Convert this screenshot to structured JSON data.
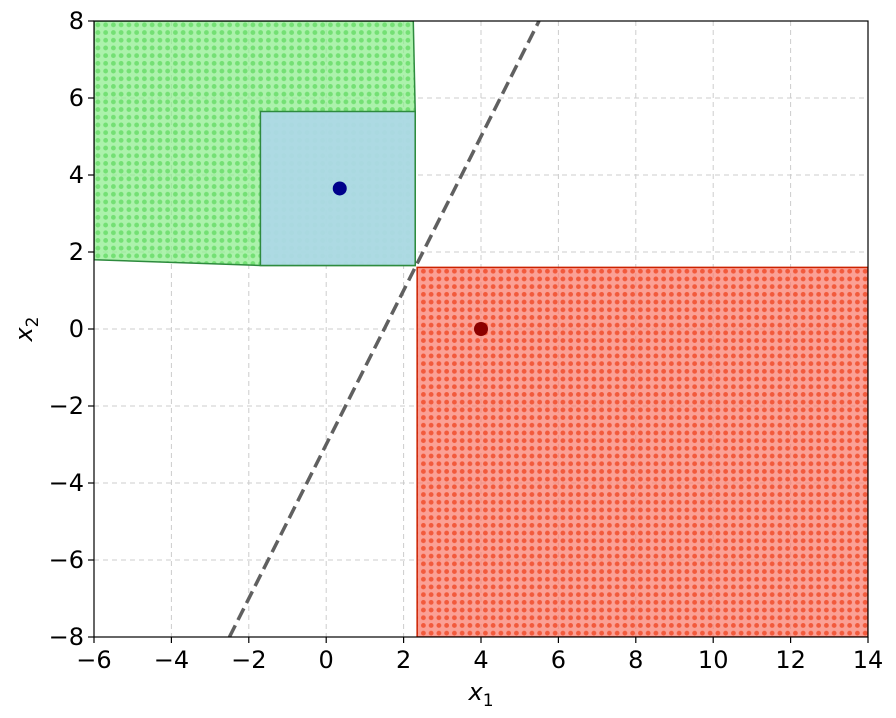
{
  "chart_data": {
    "type": "scatter",
    "title": "",
    "xlabel": "x",
    "xlabel_sub": "1",
    "ylabel": "x",
    "ylabel_sub": "2",
    "xlim": [
      -6,
      14
    ],
    "ylim": [
      -8,
      8
    ],
    "grid": true,
    "x_ticks": [
      -6,
      -4,
      -2,
      0,
      2,
      4,
      6,
      8,
      10,
      12,
      14
    ],
    "y_ticks": [
      -8,
      -6,
      -4,
      -2,
      0,
      2,
      4,
      6,
      8
    ],
    "x_tick_labels": [
      "−6",
      "−4",
      "−2",
      "0",
      "2",
      "4",
      "6",
      "8",
      "10",
      "12",
      "14"
    ],
    "y_tick_labels": [
      "−8",
      "−6",
      "−4",
      "−2",
      "0",
      "2",
      "4",
      "6",
      "8"
    ],
    "regions": [
      {
        "polygon": [
          [
            -6,
            8
          ],
          [
            2.25,
            8
          ],
          [
            2.3,
            5.65
          ],
          [
            2.3,
            1.65
          ],
          [
            -1.7,
            1.65
          ],
          [
            -6,
            1.8
          ]
        ],
        "fill": "#90ee90",
        "dot_color": "#90ee90",
        "edge": "#2e8b3e"
      },
      {
        "polygon": [
          [
            -1.7,
            5.65
          ],
          [
            2.3,
            5.65
          ],
          [
            2.3,
            1.65
          ],
          [
            -1.7,
            1.65
          ]
        ],
        "fill": "#add8e6",
        "edge": "#2e8b3e"
      },
      {
        "polygon": [
          [
            2.35,
            1.6
          ],
          [
            14,
            1.6
          ],
          [
            14,
            -8
          ],
          [
            2.35,
            -8
          ]
        ],
        "fill": "#fa8072",
        "dot_color": "#fa6a50",
        "edge": "#cc2200"
      }
    ],
    "boundary_line": {
      "points": [
        [
          -2.5,
          -8
        ],
        [
          5.5,
          8
        ]
      ],
      "color": "#606060",
      "style": "dashed"
    },
    "points": [
      {
        "x": 0.35,
        "y": 3.65,
        "color": "#00008b"
      },
      {
        "x": 4.0,
        "y": 0.0,
        "color": "#8b0000"
      }
    ]
  }
}
